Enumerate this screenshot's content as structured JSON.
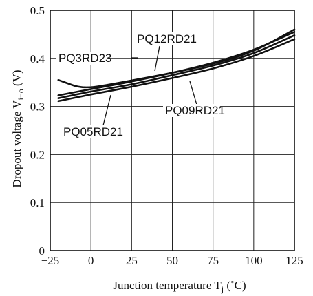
{
  "chart_data": {
    "type": "line",
    "title": "",
    "xlabel": "Junction temperature T",
    "xlabel_sub": "j",
    "xlabel_unit": " (˚C)",
    "ylabel": "Dropout voltage V",
    "ylabel_sub": "i−o",
    "ylabel_unit": " (V)",
    "xlim": [
      -25,
      125
    ],
    "ylim": [
      0,
      0.5
    ],
    "grid": true,
    "x_ticks": [
      -25,
      0,
      25,
      50,
      75,
      100,
      125
    ],
    "x_tick_labels": [
      "−25",
      "0",
      "25",
      "50",
      "75",
      "100",
      "125"
    ],
    "y_ticks": [
      0,
      0.1,
      0.2,
      0.3,
      0.4,
      0.5
    ],
    "y_tick_labels": [
      "0",
      "0.1",
      "0.2",
      "0.3",
      "0.4",
      "0.5"
    ],
    "series": [
      {
        "name": "PQ3RD23",
        "x": [
          -20,
          -10,
          -5,
          0,
          5,
          25,
          50,
          75,
          100,
          125
        ],
        "y": [
          0.355,
          0.343,
          0.34,
          0.34,
          0.342,
          0.354,
          0.37,
          0.389,
          0.416,
          0.46
        ]
      },
      {
        "name": "PQ12RD21",
        "x": [
          -20,
          0,
          25,
          50,
          75,
          100,
          125
        ],
        "y": [
          0.323,
          0.336,
          0.352,
          0.37,
          0.391,
          0.418,
          0.455
        ]
      },
      {
        "name": "PQ09RD21",
        "x": [
          -20,
          0,
          25,
          50,
          75,
          100,
          125
        ],
        "y": [
          0.317,
          0.331,
          0.346,
          0.365,
          0.385,
          0.411,
          0.448
        ]
      },
      {
        "name": "PQ05RD21",
        "x": [
          -20,
          0,
          25,
          50,
          75,
          100,
          125
        ],
        "y": [
          0.311,
          0.325,
          0.341,
          0.359,
          0.379,
          0.405,
          0.44
        ]
      }
    ]
  }
}
